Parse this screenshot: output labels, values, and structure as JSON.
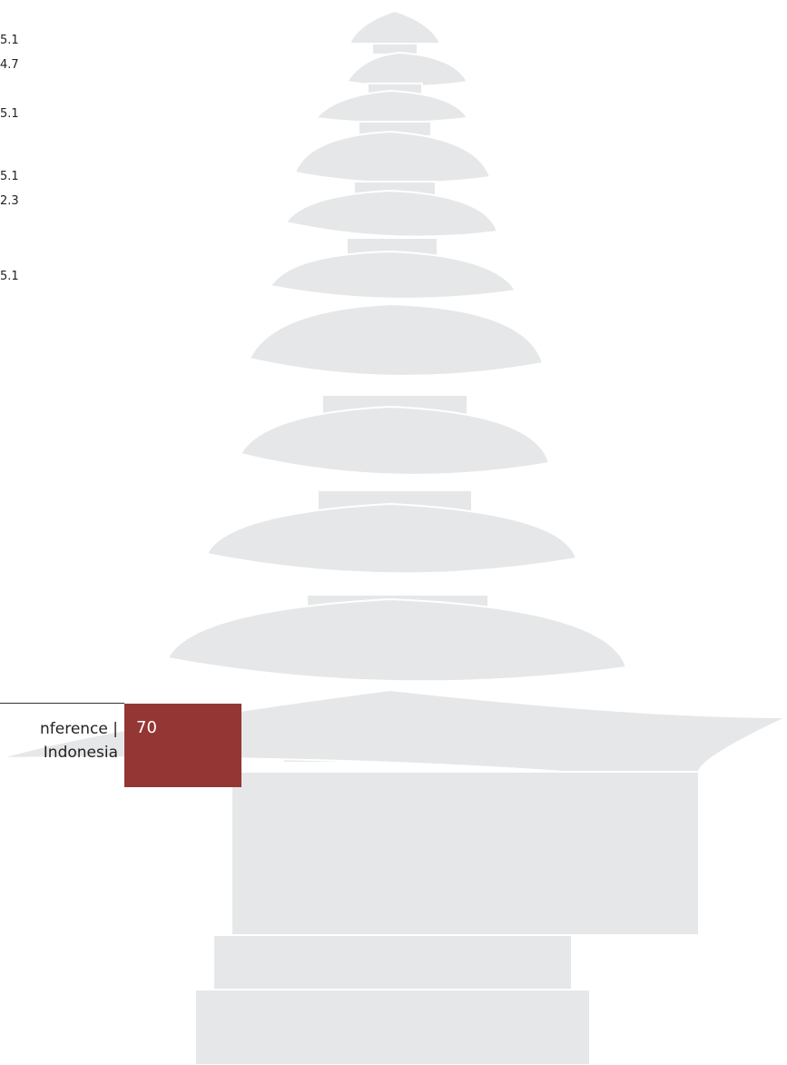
{
  "table_fragment": {
    "values": [
      "5.1",
      "4.7",
      "5.1",
      "5.1",
      "2.3",
      "5.1"
    ]
  },
  "footer": {
    "line1": "nference |",
    "line2": "Indonesia",
    "page_number": "70"
  }
}
